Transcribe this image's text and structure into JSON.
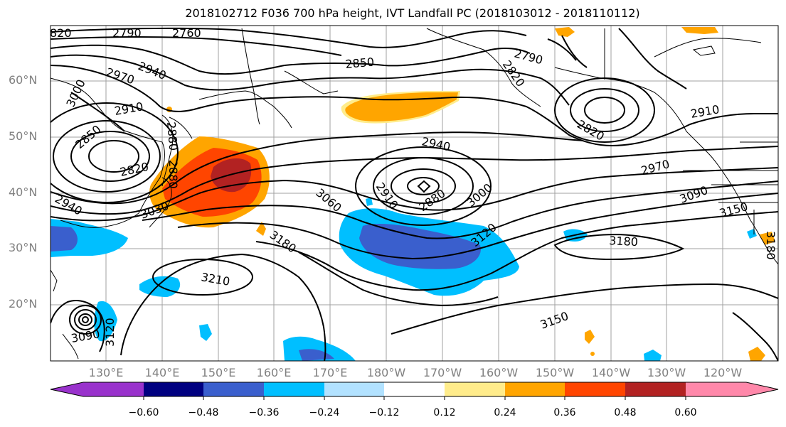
{
  "title": "2018102712 F036 700 hPa height, IVT Landfall PC (2018103012 - 2018110112)",
  "latitude_labels": [
    "60°N",
    "50°N",
    "40°N",
    "30°N",
    "20°N"
  ],
  "longitude_labels": [
    "130°E",
    "140°E",
    "150°E",
    "160°E",
    "170°E",
    "180°W",
    "170°W",
    "160°W",
    "150°W",
    "140°W",
    "130°W",
    "120°W"
  ],
  "contour_labels": [
    "820",
    "2790",
    "2760",
    "2970",
    "2940",
    "3000",
    "2850",
    "2790",
    "2820",
    "2910",
    "2880",
    "2820",
    "2910",
    "2850",
    "2820",
    "2940",
    "2940",
    "2970",
    "3090",
    "3060",
    "2910",
    "2880",
    "3000",
    "3150",
    "3030",
    "3120",
    "3180",
    "3180",
    "3180",
    "3210",
    "3150",
    "3120",
    "3090",
    "2880"
  ],
  "colorbar": {
    "tick_labels": [
      "−0.60",
      "−0.48",
      "−0.36",
      "−0.24",
      "−0.12",
      "0.12",
      "0.24",
      "0.36",
      "0.48",
      "0.60"
    ],
    "colors": [
      "#9932CC",
      "#000080",
      "#3A5FCD",
      "#00BFFF",
      "#B2E2FF",
      "#FFFFFF",
      "#FFEC8B",
      "#FFA500",
      "#FF4500",
      "#B22222",
      "#FF88AA"
    ]
  },
  "colors": {
    "grid": "#a0a0a0",
    "contour": "#000000",
    "coast": "#000000",
    "axis_label": "#808080"
  }
}
